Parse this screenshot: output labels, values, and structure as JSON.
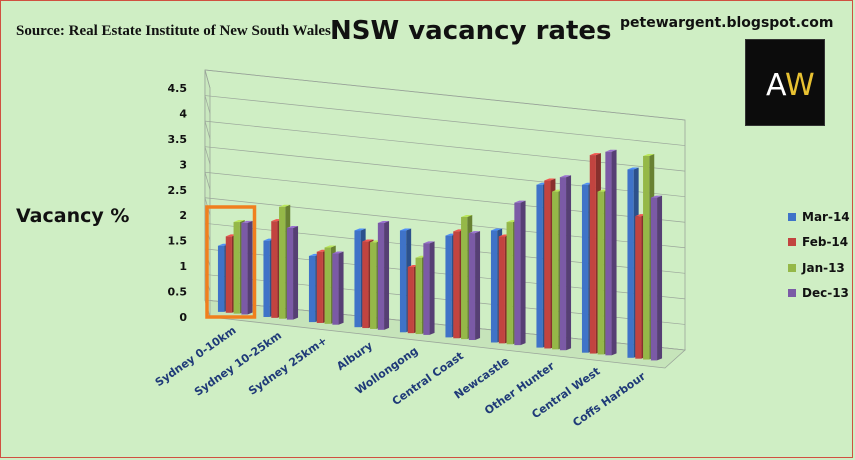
{
  "source_text": "Source: Real Estate Institute of New South Wales",
  "website": "petewargent.blogspot.com",
  "logo": {
    "text_a": "A",
    "text_w": "W",
    "a_color": "#ffffff",
    "w_color": "#e8c232"
  },
  "colors": {
    "background": "#cfeec4",
    "highlight_box": "#f07f1e"
  },
  "chart_data": {
    "type": "bar",
    "title": "NSW vacancy rates",
    "ylabel": "Vacancy %",
    "xlabel": "",
    "ylim": [
      0,
      4.5
    ],
    "yticks": [
      "0",
      "0.5",
      "1",
      "1.5",
      "2",
      "2.5",
      "3",
      "3.5",
      "4",
      "4.5"
    ],
    "grid": true,
    "legend_position": "right",
    "categories": [
      "Sydney 0-10km",
      "Sydney 10-25km",
      "Sydney 25km+",
      "Albury",
      "Wollongong",
      "Central Coast",
      "Newcastle",
      "Other Hunter",
      "Central West",
      "Coffs Harbour"
    ],
    "series": [
      {
        "name": "Mar-14",
        "color": "#3f73c8",
        "values": [
          1.3,
          1.5,
          1.3,
          1.9,
          2.0,
          2.0,
          2.2,
          3.2,
          3.3,
          3.7
        ]
      },
      {
        "name": "Feb-14",
        "color": "#c24440",
        "values": [
          1.5,
          1.9,
          1.4,
          1.7,
          1.3,
          2.1,
          2.1,
          3.3,
          3.9,
          2.8
        ]
      },
      {
        "name": "Jan-13",
        "color": "#95b848",
        "values": [
          1.8,
          2.2,
          1.5,
          1.7,
          1.5,
          2.4,
          2.4,
          3.1,
          3.2,
          4.0
        ]
      },
      {
        "name": "Dec-13",
        "color": "#7b5aa6",
        "values": [
          1.8,
          1.8,
          1.4,
          2.1,
          1.8,
          2.1,
          2.8,
          3.4,
          4.0,
          3.2
        ]
      }
    ],
    "highlighted_category": "Sydney 0-10km"
  }
}
